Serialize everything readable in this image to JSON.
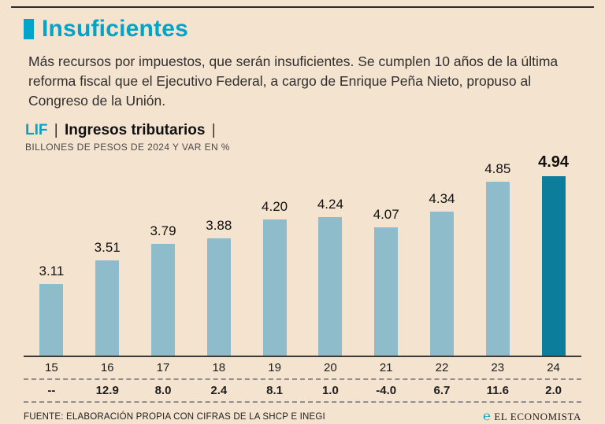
{
  "header": {
    "title": "Insuficientes",
    "description": "Más recursos por impuestos, que serán insuficientes. Se cumplen 10 años de la última reforma fiscal que el Ejecutivo Federal, a cargo de Enrique Peña Nieto, propuso al Congreso de la Unión."
  },
  "chart_header": {
    "tag": "LIF",
    "separator": "|",
    "title": "Ingresos tributarios",
    "subtitle": "BILLONES DE PESOS DE 2024 Y VAR EN %"
  },
  "chart_data": {
    "type": "bar",
    "title": "LIF | Ingresos tributarios |",
    "subtitle": "BILLONES DE PESOS DE 2024 Y VAR EN %",
    "categories": [
      "15",
      "16",
      "17",
      "18",
      "19",
      "20",
      "21",
      "22",
      "23",
      "24"
    ],
    "values": [
      3.11,
      3.51,
      3.79,
      3.88,
      4.2,
      4.24,
      4.07,
      4.34,
      4.85,
      4.94
    ],
    "variation": [
      "--",
      "12.9",
      "8.0",
      "2.4",
      "8.1",
      "1.0",
      "-4.0",
      "6.7",
      "11.6",
      "2.0"
    ],
    "highlight_index": 9,
    "bar_color": "#8fbcca",
    "highlight_color": "#0c7e9c",
    "ylim": [
      1.9,
      5.0
    ],
    "grid": false,
    "legend": "none"
  },
  "footer": {
    "source": "FUENTE: ELABORACIÓN PROPIA CON CIFRAS DE LA SHCP E INEGI",
    "brand": "EL ECONOMISTA",
    "brand_mark": "℮"
  },
  "colors": {
    "accent": "#00a3c9",
    "background": "#f4e3cf",
    "bar": "#8fbcca",
    "bar_highlight": "#0c7e9c"
  }
}
